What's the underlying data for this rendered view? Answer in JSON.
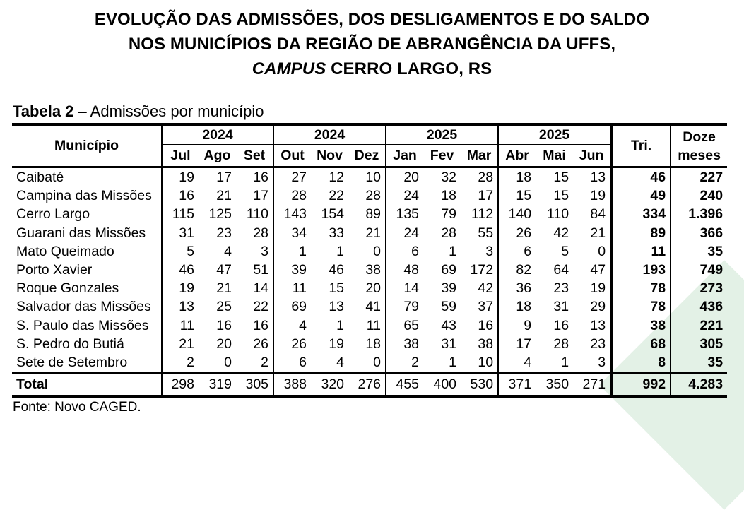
{
  "title": {
    "line1": "EVOLUÇÃO DAS ADMISSÕES, DOS DESLIGAMENTOS E DO SALDO",
    "line2": "NOS MUNICÍPIOS DA REGIÃO DE ABRANGÊNCIA DA UFFS,",
    "line3_italic": "CAMPUS",
    "line3_rest": " CERRO LARGO, RS"
  },
  "caption": {
    "label": "Tabela 2",
    "text": " – Admissões por município"
  },
  "table": {
    "col_municipio": "Município",
    "years": [
      "2024",
      "2024",
      "2025",
      "2025"
    ],
    "months": [
      "Jul",
      "Ago",
      "Set",
      "Out",
      "Nov",
      "Dez",
      "Jan",
      "Fev",
      "Mar",
      "Abr",
      "Mai",
      "Jun"
    ],
    "col_tri": "Tri.",
    "col_doze_1": "Doze",
    "col_doze_2": "meses",
    "rows": [
      {
        "name": "Caibaté",
        "values": [
          "19",
          "17",
          "16",
          "27",
          "12",
          "10",
          "20",
          "32",
          "28",
          "18",
          "15",
          "13"
        ],
        "tri": "46",
        "doze": "227"
      },
      {
        "name": "Campina das Missões",
        "values": [
          "16",
          "21",
          "17",
          "28",
          "22",
          "28",
          "24",
          "18",
          "17",
          "15",
          "15",
          "19"
        ],
        "tri": "49",
        "doze": "240"
      },
      {
        "name": "Cerro Largo",
        "values": [
          "115",
          "125",
          "110",
          "143",
          "154",
          "89",
          "135",
          "79",
          "112",
          "140",
          "110",
          "84"
        ],
        "tri": "334",
        "doze": "1.396"
      },
      {
        "name": "Guarani das Missões",
        "values": [
          "31",
          "23",
          "28",
          "34",
          "33",
          "21",
          "24",
          "28",
          "55",
          "26",
          "42",
          "21"
        ],
        "tri": "89",
        "doze": "366"
      },
      {
        "name": "Mato Queimado",
        "values": [
          "5",
          "4",
          "3",
          "1",
          "1",
          "0",
          "6",
          "1",
          "3",
          "6",
          "5",
          "0"
        ],
        "tri": "11",
        "doze": "35"
      },
      {
        "name": "Porto Xavier",
        "values": [
          "46",
          "47",
          "51",
          "39",
          "46",
          "38",
          "48",
          "69",
          "172",
          "82",
          "64",
          "47"
        ],
        "tri": "193",
        "doze": "749"
      },
      {
        "name": "Roque Gonzales",
        "values": [
          "19",
          "21",
          "14",
          "11",
          "15",
          "20",
          "14",
          "39",
          "42",
          "36",
          "23",
          "19"
        ],
        "tri": "78",
        "doze": "273"
      },
      {
        "name": "Salvador das Missões",
        "values": [
          "13",
          "25",
          "22",
          "69",
          "13",
          "41",
          "79",
          "59",
          "37",
          "18",
          "31",
          "29"
        ],
        "tri": "78",
        "doze": "436"
      },
      {
        "name": "S. Paulo das Missões",
        "values": [
          "11",
          "16",
          "16",
          "4",
          "1",
          "11",
          "65",
          "43",
          "16",
          "9",
          "16",
          "13"
        ],
        "tri": "38",
        "doze": "221"
      },
      {
        "name": "S. Pedro do Butiá",
        "values": [
          "21",
          "20",
          "26",
          "26",
          "19",
          "18",
          "38",
          "31",
          "38",
          "17",
          "28",
          "23"
        ],
        "tri": "68",
        "doze": "305"
      },
      {
        "name": "Sete de Setembro",
        "values": [
          "2",
          "0",
          "2",
          "6",
          "4",
          "0",
          "2",
          "1",
          "10",
          "4",
          "1",
          "3"
        ],
        "tri": "8",
        "doze": "35"
      }
    ],
    "total": {
      "name": "Total",
      "values": [
        "298",
        "319",
        "305",
        "388",
        "320",
        "276",
        "455",
        "400",
        "530",
        "371",
        "350",
        "271"
      ],
      "tri": "992",
      "doze": "4.283"
    }
  },
  "source": "Fonte: Novo CAGED."
}
